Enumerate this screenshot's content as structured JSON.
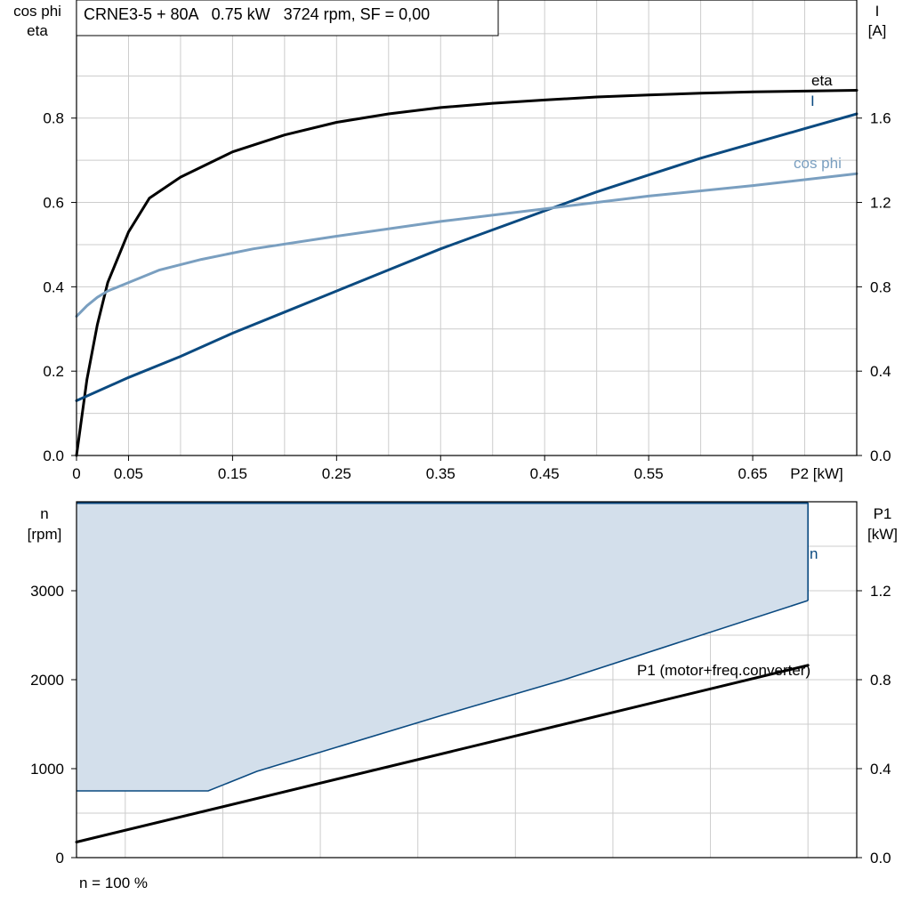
{
  "colors": {
    "eta": "#000000",
    "current": "#0b4a80",
    "cos_phi": "#7a9fc0",
    "speed_band_fill": "#d3dfeb",
    "speed_band_line": "#0b4a80",
    "p1": "#000000",
    "grid": "#cccccc"
  },
  "chart_data": [
    {
      "type": "line",
      "title": "CRNE3-5 + 80A   0.75 kW   3724 rpm, SF = 0,00",
      "xlabel": "P2 [kW]",
      "xlim": [
        0,
        0.75
      ],
      "x_ticks": [
        0,
        0.05,
        0.15,
        0.25,
        0.35,
        0.45,
        0.55,
        0.65
      ],
      "x_tick_labels": [
        "0",
        "0.05",
        "0.15",
        "0.25",
        "0.35",
        "0.45",
        "0.55",
        "0.65"
      ],
      "ylabel_left": [
        "cos phi",
        "eta"
      ],
      "ylim_left": [
        0,
        1.08
      ],
      "y_ticks_left": [
        0,
        0.2,
        0.4,
        0.6,
        0.8
      ],
      "y_tick_labels_left": [
        "0.0",
        "0.2",
        "0.4",
        "0.6",
        "0.8"
      ],
      "ylabel_right": [
        "I",
        "[A]"
      ],
      "ylim_right": [
        0,
        2.16
      ],
      "y_ticks_right": [
        0,
        0.4,
        0.8,
        1.2,
        1.6
      ],
      "y_tick_labels_right": [
        "0.0",
        "0.4",
        "0.8",
        "1.2",
        "1.6"
      ],
      "grid": true,
      "series": [
        {
          "name": "eta",
          "axis": "left",
          "x": [
            0,
            0.01,
            0.02,
            0.03,
            0.05,
            0.07,
            0.1,
            0.15,
            0.2,
            0.25,
            0.3,
            0.35,
            0.4,
            0.45,
            0.5,
            0.55,
            0.6,
            0.65,
            0.7,
            0.75
          ],
          "y": [
            0,
            0.18,
            0.31,
            0.41,
            0.53,
            0.61,
            0.66,
            0.72,
            0.76,
            0.79,
            0.81,
            0.825,
            0.835,
            0.843,
            0.85,
            0.855,
            0.859,
            0.862,
            0.864,
            0.866
          ]
        },
        {
          "name": "I",
          "axis": "right",
          "x": [
            0,
            0.05,
            0.1,
            0.15,
            0.2,
            0.25,
            0.3,
            0.35,
            0.4,
            0.45,
            0.5,
            0.55,
            0.6,
            0.65,
            0.7,
            0.75
          ],
          "y": [
            0.26,
            0.37,
            0.47,
            0.58,
            0.68,
            0.78,
            0.88,
            0.98,
            1.07,
            1.16,
            1.25,
            1.33,
            1.41,
            1.48,
            1.55,
            1.62
          ]
        },
        {
          "name": "cos phi",
          "axis": "left",
          "x": [
            0,
            0.01,
            0.02,
            0.03,
            0.05,
            0.08,
            0.12,
            0.17,
            0.25,
            0.35,
            0.45,
            0.55,
            0.65,
            0.75
          ],
          "y": [
            0.33,
            0.355,
            0.375,
            0.39,
            0.41,
            0.44,
            0.465,
            0.49,
            0.52,
            0.555,
            0.585,
            0.615,
            0.64,
            0.668
          ]
        }
      ]
    },
    {
      "type": "area",
      "xlim": [
        0,
        0.8
      ],
      "ylabel_left": [
        "n",
        "[rpm]"
      ],
      "ylim_left": [
        0,
        4000
      ],
      "y_ticks_left": [
        0,
        1000,
        2000,
        3000
      ],
      "y_tick_labels_left": [
        "0",
        "1000",
        "2000",
        "3000"
      ],
      "ylabel_right": [
        "P1",
        "[kW]"
      ],
      "ylim_right": [
        0,
        1.6
      ],
      "y_ticks_right": [
        0,
        0.4,
        0.8,
        1.2
      ],
      "y_tick_labels_right": [
        "0.0",
        "0.4",
        "0.8",
        "1.2"
      ],
      "grid": true,
      "x_grid": [
        0.05,
        0.15,
        0.25,
        0.35,
        0.45,
        0.55,
        0.65,
        0.75
      ],
      "speed_band": {
        "name": "n",
        "x": [
          0,
          0.75
        ],
        "n_max": 3990,
        "n_min_x": [
          0,
          0.135,
          0.185,
          0.375,
          0.5,
          0.75
        ],
        "n_min": [
          750,
          750,
          970,
          1600,
          2000,
          2890
        ]
      },
      "p1_series": {
        "name": "P1 (motor+freq.converter)",
        "axis": "right",
        "x": [
          0,
          0.75
        ],
        "y": [
          0.07,
          0.865
        ]
      },
      "footnote": "n = 100 %"
    }
  ]
}
